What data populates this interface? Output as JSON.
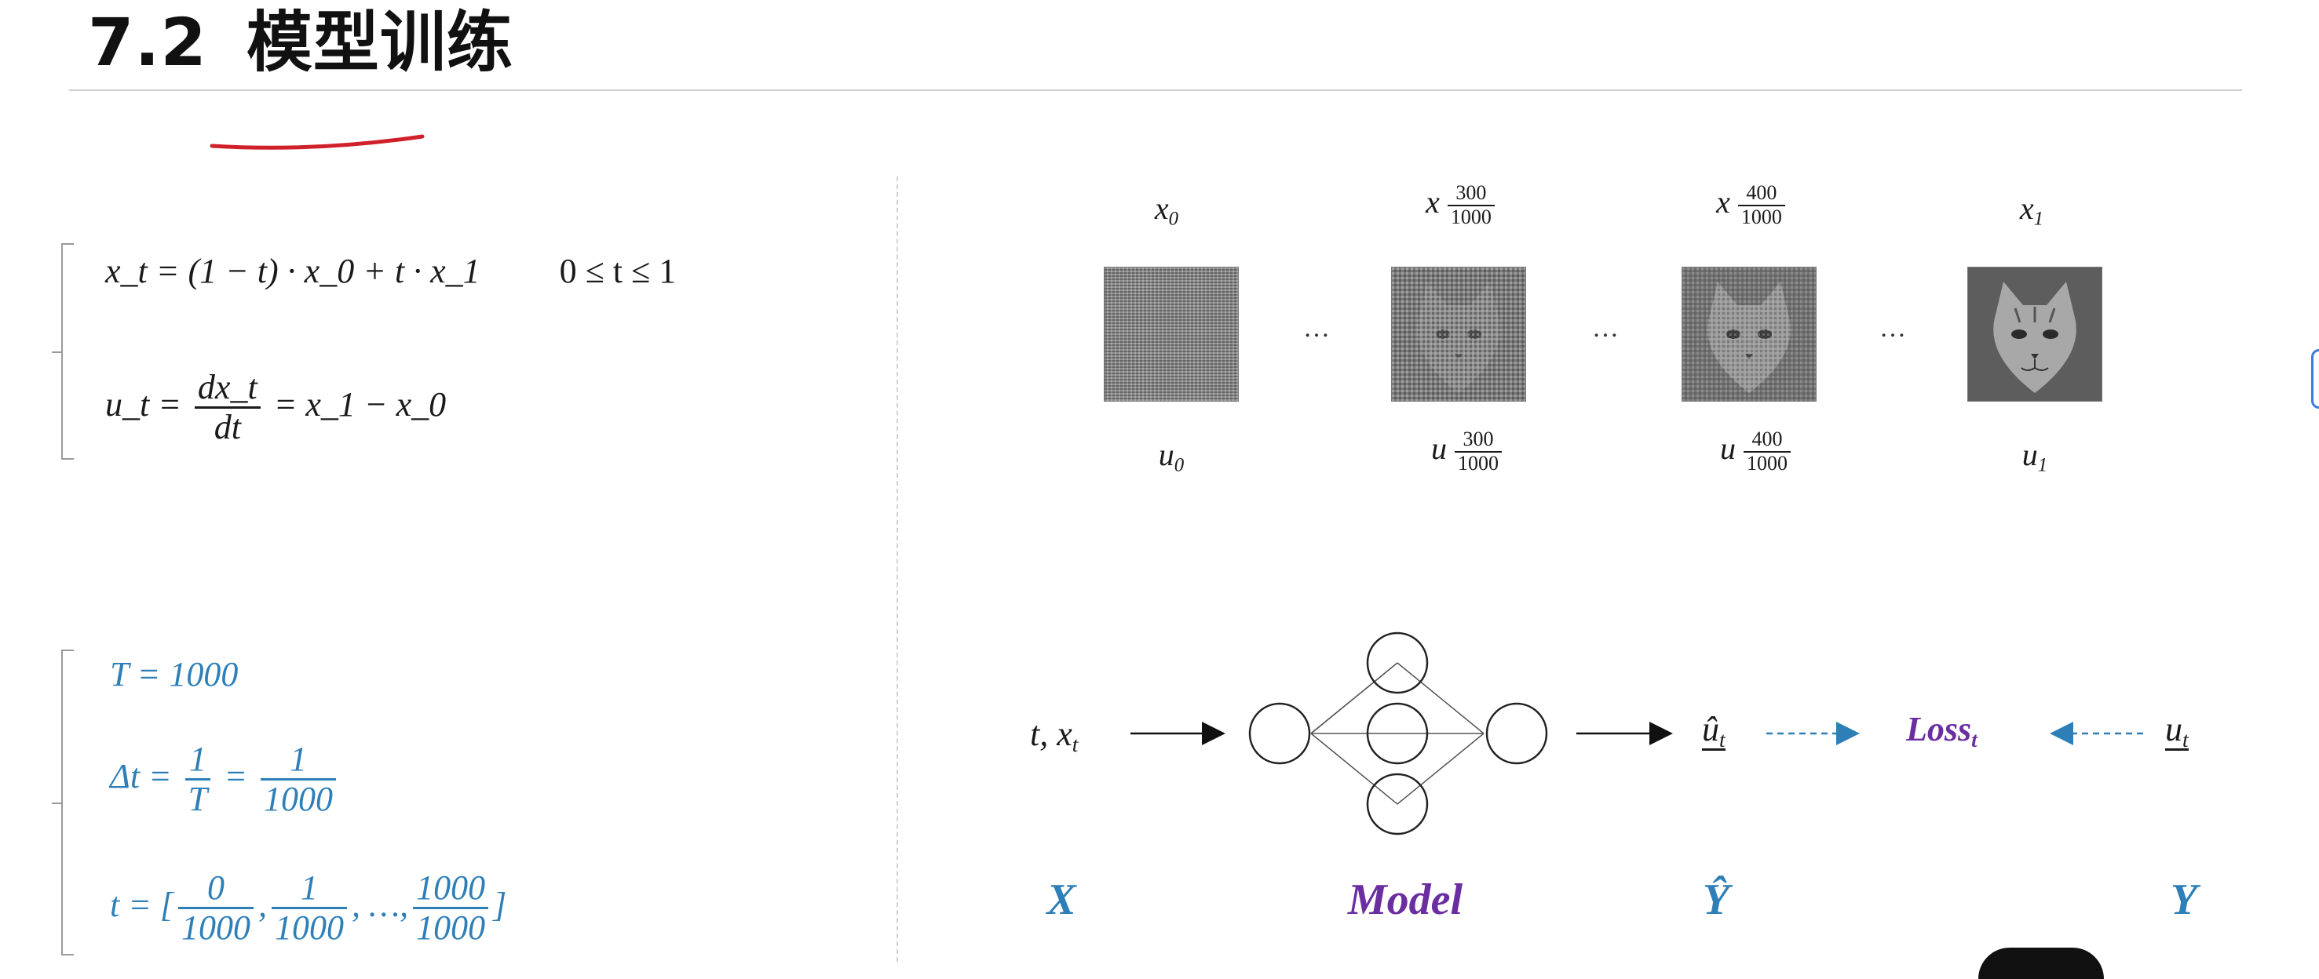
{
  "header": {
    "section_number": "7.2",
    "section_title": "模型训练"
  },
  "formulas_top": {
    "line1": "x_t = (1 − t) · x_0 + t · x_1",
    "line1_range": "0 ≤ t ≤ 1",
    "line2_lhs": "u_t =",
    "line2_num": "dx_t",
    "line2_den": "dt",
    "line2_rhs": "= x_1 − x_0"
  },
  "formulas_bottom": {
    "T_line": "T = 1000",
    "dt_lhs": "Δt =",
    "dt_n1": "1",
    "dt_d1": "T",
    "dt_n2": "1",
    "dt_d2": "1000",
    "t_lhs": "t = [",
    "t_fracs": [
      {
        "n": "0",
        "d": "1000"
      },
      {
        "n": "1",
        "d": "1000"
      },
      {
        "n": "1000",
        "d": "1000"
      }
    ],
    "t_ellipsis": ", …,",
    "t_close": "]"
  },
  "image_row": {
    "top_labels": [
      {
        "base": "x",
        "sub": "0"
      },
      {
        "base": "x",
        "n": "300",
        "d": "1000"
      },
      {
        "base": "x",
        "n": "400",
        "d": "1000"
      },
      {
        "base": "x",
        "sub": "1"
      }
    ],
    "bottom_labels": [
      {
        "base": "u",
        "sub": "0"
      },
      {
        "base": "u",
        "n": "300",
        "d": "1000"
      },
      {
        "base": "u",
        "n": "400",
        "d": "1000"
      },
      {
        "base": "u",
        "sub": "1"
      }
    ],
    "images": [
      "noise-image",
      "cat-noisy-300",
      "cat-noisy-400",
      "cat-clean"
    ],
    "ellipsis": "…"
  },
  "pipeline": {
    "input": "t, x",
    "input_sub": "t",
    "prediction": "û",
    "prediction_sub": "t",
    "loss": "Loss",
    "loss_sub": "t",
    "target": "u",
    "target_sub": "t",
    "label_X": "X",
    "label_model": "Model",
    "label_Yhat": "Ŷ",
    "label_Y": "Y"
  },
  "colors": {
    "blue": "#2e7fb8",
    "purple": "#6a2ea0",
    "red_underline": "#d0202a"
  }
}
